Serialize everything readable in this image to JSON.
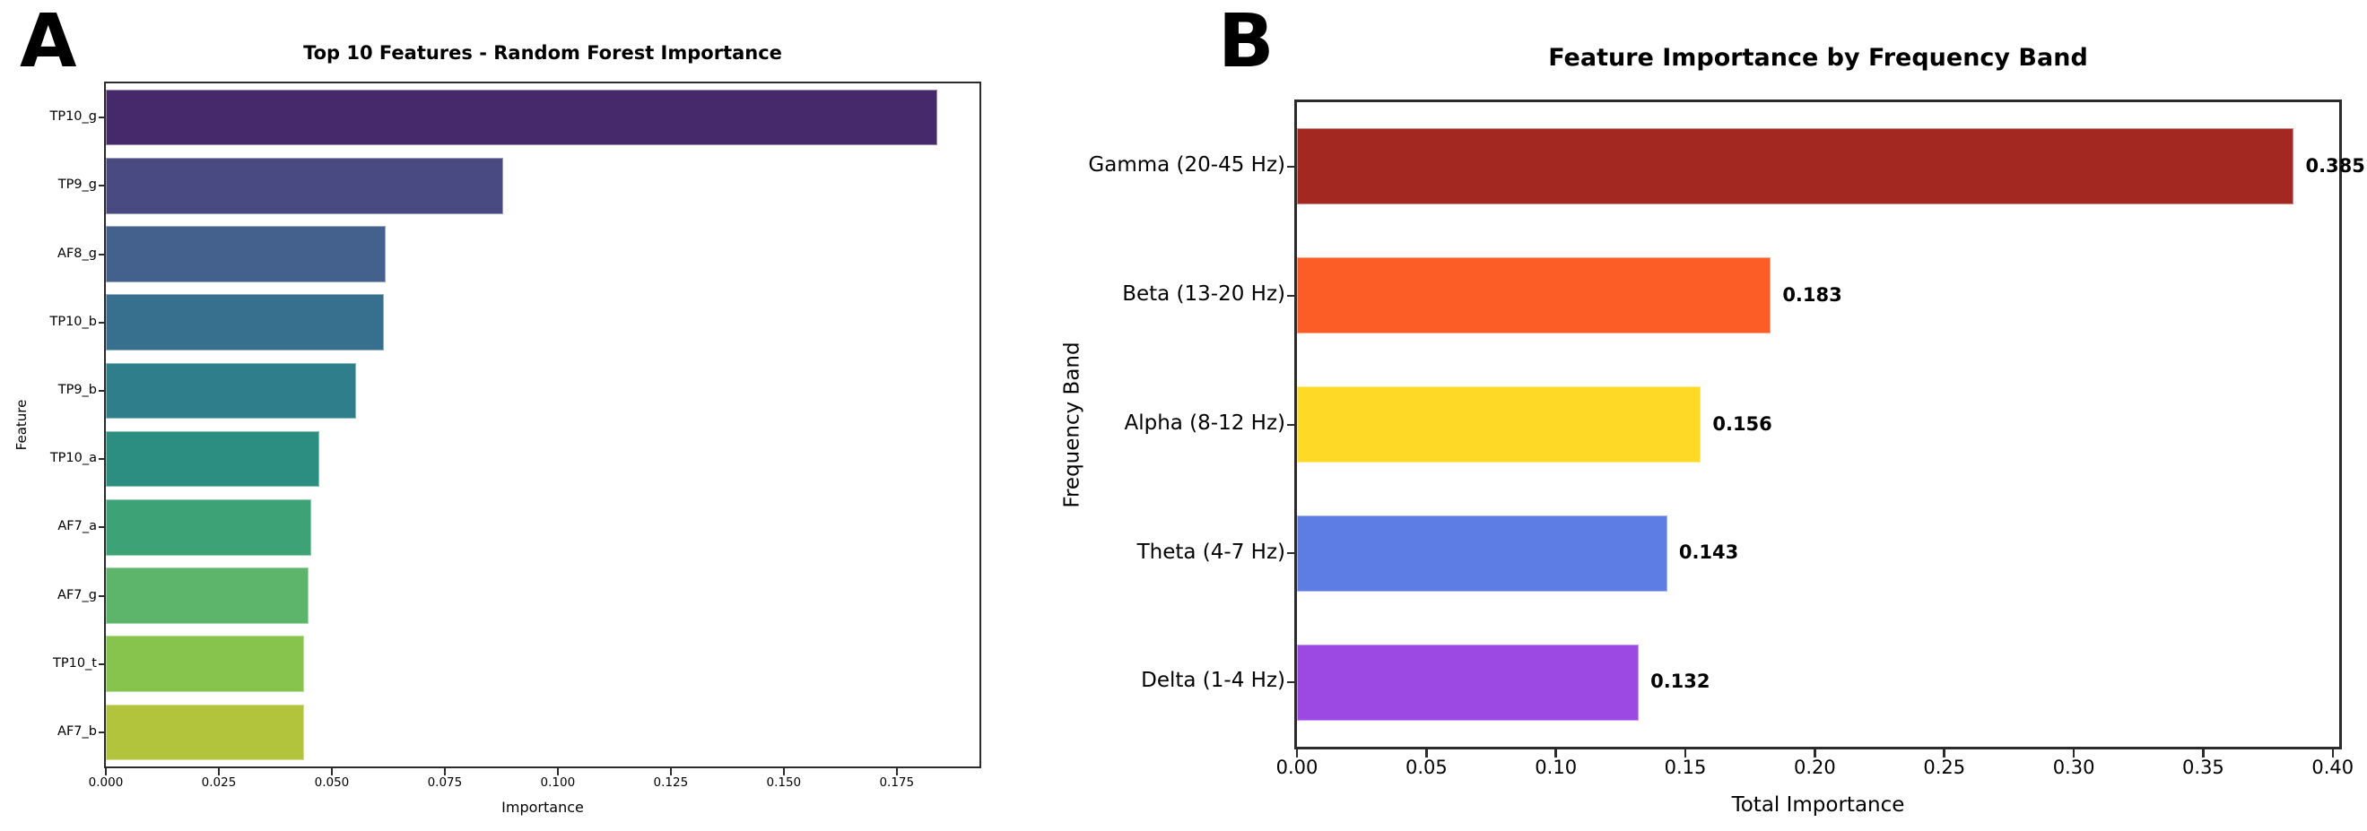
{
  "figure": {
    "background": "#ffffff",
    "panel_letters": [
      "A",
      "B"
    ]
  },
  "chart_data": [
    {
      "panel_letter": "A",
      "type": "bar",
      "orientation": "horizontal",
      "title": "Top 10 Features - Random Forest Importance",
      "xlabel": "Importance",
      "ylabel": "Feature",
      "categories": [
        "TP10_g",
        "TP9_g",
        "AF8_g",
        "TP10_b",
        "TP9_b",
        "TP10_a",
        "AF7_a",
        "AF7_g",
        "TP10_t",
        "AF7_b"
      ],
      "values": [
        0.184,
        0.088,
        0.0619,
        0.0616,
        0.0554,
        0.0473,
        0.0455,
        0.0448,
        0.0439,
        0.0438
      ],
      "bar_colors": [
        "#46296b",
        "#4a4a83",
        "#44618d",
        "#36708e",
        "#2f7e8c",
        "#2b8e80",
        "#3da377",
        "#5cb56a",
        "#86c44e",
        "#b2c33c"
      ],
      "xlim": [
        0,
        0.1933
      ],
      "xticks": [
        0,
        0.025,
        0.05,
        0.075,
        0.1,
        0.125,
        0.15,
        0.175
      ],
      "xtick_labels": [
        "0.000",
        "0.025",
        "0.050",
        "0.075",
        "0.100",
        "0.125",
        "0.150",
        "0.175"
      ],
      "value_labels": null,
      "grid": false,
      "legend": null
    },
    {
      "panel_letter": "B",
      "type": "bar",
      "orientation": "horizontal",
      "title": "Feature Importance by Frequency Band",
      "xlabel": "Total Importance",
      "ylabel": "Frequency Band",
      "categories": [
        "Gamma (20-45 Hz)",
        "Beta (13-20 Hz)",
        "Alpha (8-12 Hz)",
        "Theta (4-7 Hz)",
        "Delta (1-4 Hz)"
      ],
      "values": [
        0.385,
        0.183,
        0.156,
        0.143,
        0.132
      ],
      "bar_colors": [
        "#a32822",
        "#fc5d26",
        "#fed925",
        "#5d7ce4",
        "#9c49e4"
      ],
      "xlim": [
        0,
        0.4025
      ],
      "xticks": [
        0,
        0.05,
        0.1,
        0.15,
        0.2,
        0.25,
        0.3,
        0.35,
        0.4
      ],
      "xtick_labels": [
        "0.00",
        "0.05",
        "0.10",
        "0.15",
        "0.20",
        "0.25",
        "0.30",
        "0.35",
        "0.40"
      ],
      "value_labels": [
        "0.385",
        "0.183",
        "0.156",
        "0.143",
        "0.132"
      ],
      "grid": false,
      "legend": null
    }
  ]
}
